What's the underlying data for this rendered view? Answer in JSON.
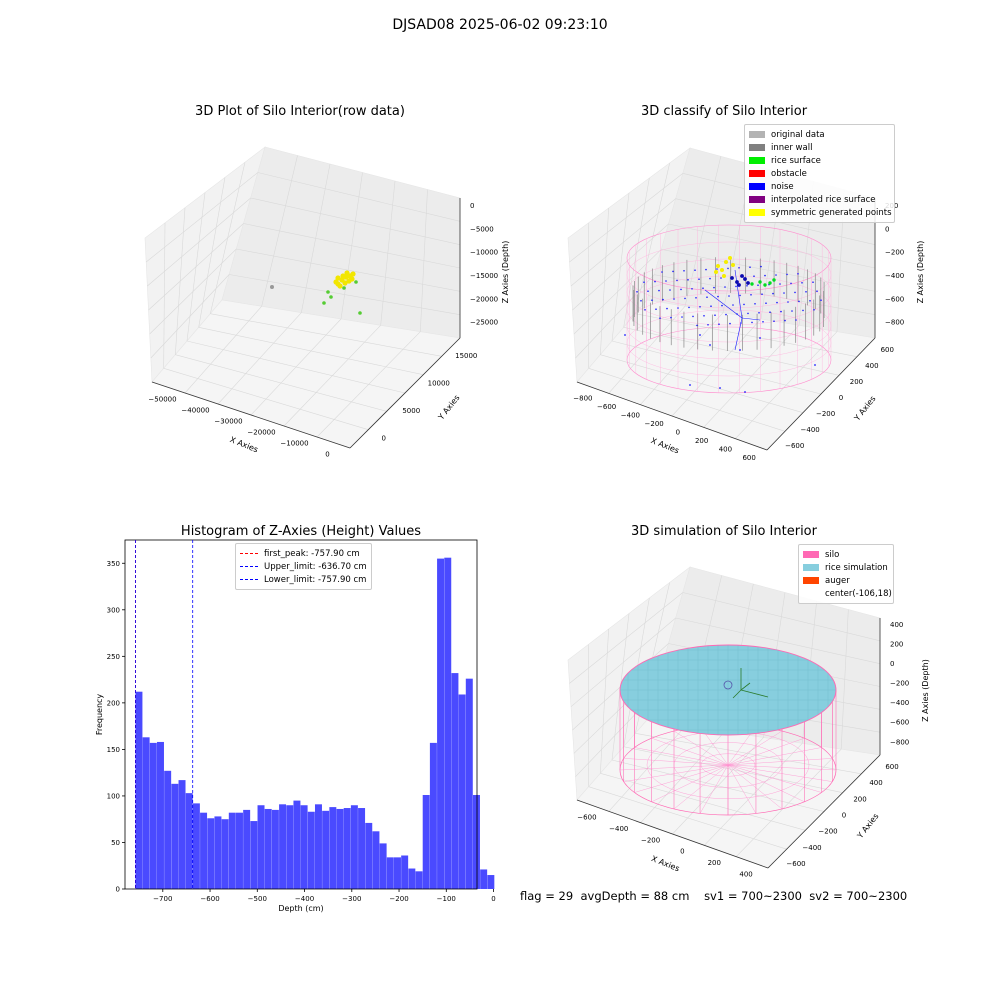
{
  "figure": {
    "title": "DJSAD08 2025-06-02 09:23:10",
    "status": {
      "flag": "flag = 29",
      "avg_depth": "avgDepth = 88 cm",
      "sv1": "sv1 = 700~2300",
      "sv2": "sv2 = 700~2300"
    }
  },
  "chart_data": [
    {
      "type": "scatter",
      "projection": "3d",
      "title": "3D Plot of Silo Interior(row data)",
      "xlabel": "X Axies",
      "ylabel": "Y Axies",
      "zlabel": "Z Axies (Depth)",
      "x_ticks": [
        "−50000",
        "−40000",
        "−30000",
        "−20000",
        "−10000",
        "0"
      ],
      "y_ticks": [
        "0",
        "5000",
        "10000",
        "15000"
      ],
      "z_ticks": [
        "0",
        "−5000",
        "−10000",
        "−15000",
        "−20000",
        "−25000"
      ],
      "colors": {
        "points": "#f2e600",
        "green": "#55cc33",
        "gray": "#999999"
      }
    },
    {
      "type": "scatter",
      "projection": "3d",
      "title": "3D classify of Silo Interior",
      "xlabel": "X Axies",
      "ylabel": "Y Axies",
      "zlabel": "Z Axies (Depth)",
      "x_ticks": [
        "−800",
        "−600",
        "−400",
        "−200",
        "0",
        "200",
        "400",
        "600"
      ],
      "y_ticks": [
        "−600",
        "−400",
        "−200",
        "0",
        "200",
        "400",
        "600"
      ],
      "z_ticks": [
        "200",
        "0",
        "−200",
        "−400",
        "−600",
        "−800"
      ],
      "legend": [
        {
          "label": "original data",
          "color": "#b3b3b3"
        },
        {
          "label": "inner wall",
          "color": "#808080"
        },
        {
          "label": "rice surface",
          "color": "#00ee00"
        },
        {
          "label": "obstacle",
          "color": "#ff0000"
        },
        {
          "label": "noise",
          "color": "#0000ff"
        },
        {
          "label": "interpolated rice surface",
          "color": "#800080"
        },
        {
          "label": "symmetric generated points",
          "color": "#ffff00"
        }
      ]
    },
    {
      "type": "bar",
      "title": "Histogram of Z-Axies (Height) Values",
      "xlabel": "Depth (cm)",
      "ylabel": "Frequency",
      "xlim": [
        -780,
        -35
      ],
      "ylim": [
        0,
        375
      ],
      "x_ticks": [
        -700,
        -600,
        -500,
        -400,
        -300,
        -200,
        -100,
        0
      ],
      "x_tick_labels": [
        "−700",
        "−600",
        "−500",
        "−400",
        "−300",
        "−200",
        "−100",
        "0"
      ],
      "y_ticks": [
        0,
        50,
        100,
        150,
        200,
        250,
        300,
        350
      ],
      "bin_start": -757.9,
      "bin_width": 15.2,
      "values": [
        212,
        163,
        157,
        158,
        127,
        113,
        117,
        103,
        92,
        82,
        76,
        78,
        75,
        82,
        82,
        85,
        73,
        90,
        86,
        85,
        91,
        90,
        95,
        90,
        83,
        91,
        84,
        88,
        86,
        87,
        90,
        87,
        71,
        62,
        49,
        34,
        34,
        36,
        22,
        19,
        101,
        157,
        355,
        356,
        232,
        209,
        226,
        101,
        21,
        15
      ],
      "bar_color": "#4a4aff",
      "lines": [
        {
          "label": "first_peak: -757.90 cm",
          "x": -757.9,
          "color": "#ff0000"
        },
        {
          "label": "Upper_limit: -636.70 cm",
          "x": -636.7,
          "color": "#0000ff"
        },
        {
          "label": "Lower_limit: -757.90 cm",
          "x": -757.9,
          "color": "#0000ff"
        }
      ],
      "legend_position": "top-center"
    },
    {
      "type": "surface",
      "projection": "3d",
      "title": "3D simulation of Silo Interior",
      "xlabel": "X Axies",
      "ylabel": "Y Axies",
      "zlabel": "Z Axies (Depth)",
      "x_ticks": [
        "−600",
        "−400",
        "−200",
        "0",
        "200",
        "400"
      ],
      "y_ticks": [
        "−600",
        "−400",
        "−200",
        "0",
        "200",
        "400",
        "600"
      ],
      "z_ticks": [
        "400",
        "200",
        "0",
        "−200",
        "−400",
        "−600",
        "−800"
      ],
      "legend": [
        {
          "label": "silo",
          "color": "#ff69b4"
        },
        {
          "label": "rice simulation",
          "color": "#87cede"
        },
        {
          "label": "auger",
          "color": "#ff4500"
        },
        {
          "label": "center(-106,18)",
          "color": ""
        }
      ]
    }
  ]
}
